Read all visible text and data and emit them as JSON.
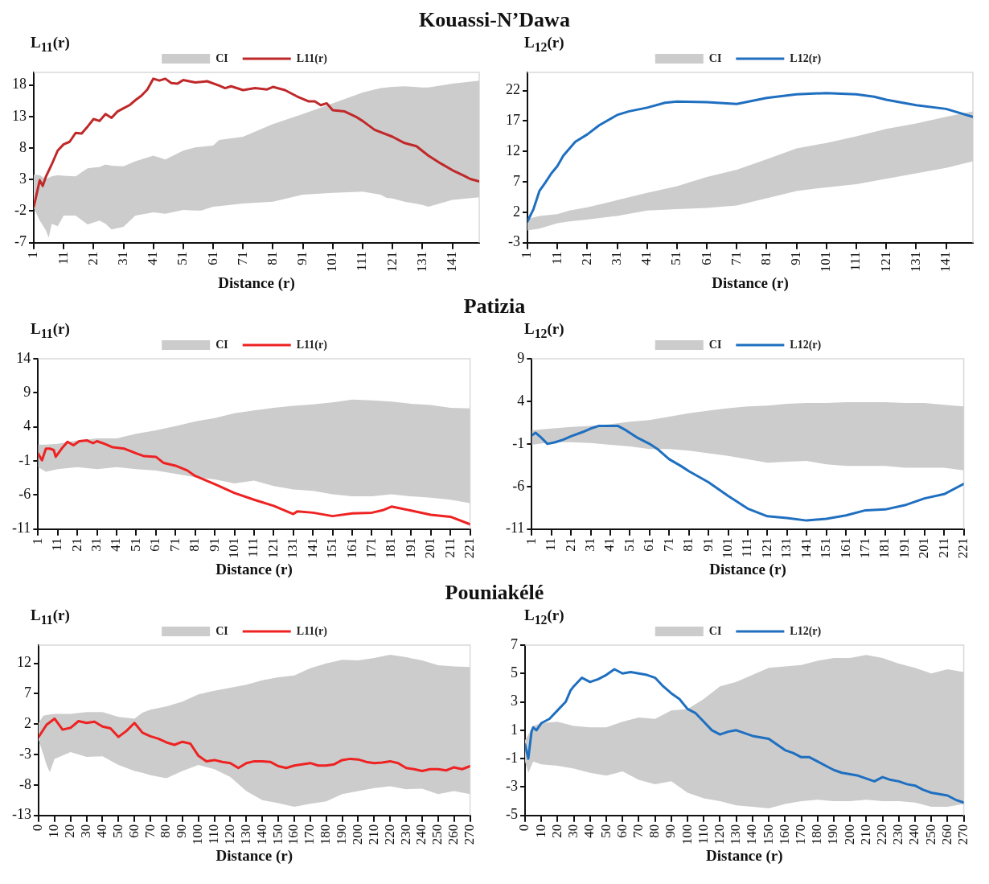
{
  "chart_data": [
    {
      "type": "line",
      "title": "Kouassi-N’Dawa",
      "xlabel": "Distance (r)",
      "ylabel": "L$_{11}$(r)",
      "xlim": [
        1,
        150
      ],
      "xticks": [
        1,
        11,
        21,
        31,
        41,
        51,
        61,
        71,
        81,
        91,
        101,
        111,
        121,
        131,
        141
      ],
      "ylim": [
        -7,
        20
      ],
      "yticks": [
        -7,
        -2,
        3,
        8,
        13,
        18
      ],
      "grid": false,
      "legend": "top",
      "series": [
        {
          "name": "CI",
          "type": "line",
          "color": "#cccccc",
          "values": [
            null,
            null,
            null,
            null,
            null,
            null,
            null,
            null,
            null,
            null,
            null,
            null,
            null,
            null,
            null,
            null,
            null,
            null,
            null,
            null,
            null,
            null,
            null,
            null,
            null,
            null,
            null,
            null,
            null,
            null,
            null,
            null,
            null,
            null
          ],
          "x": [
            1,
            3,
            5,
            6,
            7,
            9,
            11,
            15,
            19,
            23,
            25,
            27,
            31,
            35,
            41,
            45,
            51,
            55,
            57,
            61,
            63,
            71,
            81,
            91,
            101,
            111,
            117,
            119,
            121,
            125,
            131,
            133,
            141,
            150
          ],
          "upper": [
            3.8,
            3.7,
            3.1,
            3.3,
            3.5,
            3.7,
            3.6,
            3.5,
            4.8,
            5,
            5.4,
            5.2,
            5.1,
            5.9,
            6.8,
            6.2,
            7.6,
            8.1,
            8.2,
            8.4,
            9.3,
            9.8,
            11.8,
            13.4,
            15.1,
            16.8,
            17.5,
            17.6,
            17.7,
            17.8,
            17.6,
            17.6,
            18.2,
            18.7
          ],
          "lower": [
            -1.5,
            -3.5,
            -5,
            -6.2,
            -4,
            -4.4,
            -2.7,
            -2.7,
            -4.1,
            -3.5,
            -4,
            -4.9,
            -4.5,
            -2.7,
            -2.2,
            -2.4,
            -1.8,
            -1.9,
            -1.9,
            -1.3,
            -1.2,
            -0.8,
            -0.5,
            0.6,
            0.9,
            1.1,
            0.6,
            0.1,
            0,
            -0.5,
            -1,
            -1.3,
            -0.2,
            0.2
          ]
        },
        {
          "name": "L11(r)",
          "type": "line",
          "color": "#c0282a",
          "x": [
            1,
            3,
            4,
            5,
            7,
            9,
            11,
            13,
            15,
            17,
            19,
            21,
            23,
            25,
            27,
            29,
            31,
            33,
            35,
            37,
            39,
            41,
            43,
            45,
            47,
            49,
            51,
            55,
            59,
            63,
            65,
            67,
            71,
            75,
            79,
            81,
            85,
            89,
            93,
            95,
            97,
            99,
            101,
            105,
            109,
            111,
            115,
            121,
            125,
            129,
            133,
            137,
            141,
            145,
            147,
            150
          ],
          "values": [
            -1.3,
            2.9,
            2,
            3.4,
            5.4,
            7.6,
            8.6,
            9,
            10.4,
            10.3,
            11.4,
            12.6,
            12.3,
            13.4,
            12.8,
            13.8,
            14.3,
            14.8,
            15.6,
            16.3,
            17.3,
            19,
            18.7,
            19,
            18.3,
            18.2,
            18.8,
            18.4,
            18.6,
            17.9,
            17.5,
            17.8,
            17.2,
            17.5,
            17.3,
            17.7,
            17.2,
            16.2,
            15.4,
            15.4,
            14.8,
            15.1,
            14,
            13.8,
            12.9,
            12.3,
            10.9,
            9.8,
            8.8,
            8.3,
            6.8,
            5.6,
            4.5,
            3.6,
            3.1,
            2.7
          ]
        }
      ]
    },
    {
      "type": "line",
      "xlabel": "Distance (r)",
      "ylabel": "L$_{12}$(r)",
      "xlim": [
        1,
        150
      ],
      "xticks": [
        1,
        11,
        21,
        31,
        41,
        51,
        61,
        71,
        81,
        91,
        101,
        111,
        121,
        131,
        141
      ],
      "ylim": [
        -3,
        25
      ],
      "yticks": [
        -3,
        2,
        7,
        12,
        17,
        22
      ],
      "grid": false,
      "legend": "top",
      "series": [
        {
          "name": "CI",
          "type": "line",
          "color": "#cccccc",
          "values": [
            null,
            null,
            null,
            null,
            null,
            null,
            null,
            null,
            null,
            null,
            null,
            null,
            null,
            null,
            null,
            null,
            null,
            null
          ],
          "x": [
            1,
            5,
            11,
            15,
            21,
            31,
            41,
            51,
            61,
            71,
            81,
            91,
            101,
            111,
            121,
            131,
            141,
            150
          ],
          "upper": [
            0.9,
            1.4,
            1.7,
            2.3,
            2.8,
            4,
            5.2,
            6.3,
            7.8,
            9,
            10.7,
            12.5,
            13.4,
            14.5,
            15.7,
            16.6,
            17.7,
            18.6
          ],
          "lower": [
            -1,
            -0.7,
            0.2,
            0.5,
            0.8,
            1.4,
            2.3,
            2.5,
            2.7,
            3.1,
            4.3,
            5.5,
            6.1,
            6.6,
            7.5,
            8.4,
            9.3,
            10.4
          ]
        },
        {
          "name": "L12(r)",
          "type": "line",
          "color": "#1f6fc0",
          "x": [
            1,
            3,
            5,
            7,
            9,
            11,
            13,
            17,
            21,
            25,
            31,
            35,
            41,
            47,
            51,
            61,
            71,
            75,
            81,
            91,
            101,
            111,
            117,
            121,
            131,
            141,
            150
          ],
          "values": [
            0.5,
            2.5,
            5.5,
            6.9,
            8.4,
            9.6,
            11.3,
            13.6,
            14.8,
            16.3,
            18,
            18.6,
            19.2,
            20,
            20.2,
            20.1,
            19.8,
            20.2,
            20.8,
            21.4,
            21.6,
            21.4,
            21,
            20.5,
            19.6,
            19,
            17.7
          ]
        }
      ]
    },
    {
      "type": "line",
      "title": "Patizia",
      "xlabel": "Distance (r)",
      "ylabel": "L$_{11}$(r)",
      "xlim": [
        1,
        221
      ],
      "xticks": [
        1,
        11,
        21,
        31,
        41,
        51,
        61,
        71,
        81,
        91,
        101,
        111,
        121,
        131,
        141,
        151,
        161,
        171,
        181,
        191,
        201,
        211,
        221
      ],
      "ylim": [
        -11,
        14
      ],
      "yticks": [
        -11,
        -6,
        -1,
        4,
        9,
        14
      ],
      "grid": false,
      "legend": "top",
      "series": [
        {
          "name": "CI",
          "type": "line",
          "color": "#cccccc",
          "values": [
            null,
            null,
            null,
            null,
            null,
            null,
            null,
            null,
            null,
            null,
            null,
            null,
            null,
            null,
            null,
            null,
            null,
            null,
            null,
            null,
            null,
            null,
            null,
            null
          ],
          "x": [
            1,
            5,
            11,
            21,
            31,
            41,
            51,
            61,
            71,
            81,
            91,
            101,
            111,
            121,
            131,
            141,
            151,
            161,
            171,
            181,
            191,
            201,
            211,
            221
          ],
          "upper": [
            1.4,
            1.4,
            1.5,
            2,
            2.3,
            2.3,
            3,
            3.5,
            4.1,
            4.8,
            5.3,
            6,
            6.4,
            6.8,
            7.1,
            7.3,
            7.6,
            8,
            7.9,
            7.7,
            7.4,
            7.2,
            6.8,
            6.7
          ],
          "lower": [
            -1.9,
            -2.6,
            -2.2,
            -1.9,
            -2.2,
            -1.9,
            -2.2,
            -2.4,
            -2.9,
            -3.4,
            -3.7,
            -4.3,
            -3.9,
            -4.7,
            -5.2,
            -5.4,
            -5.9,
            -6.2,
            -6.2,
            -5.9,
            -6.2,
            -6.4,
            -6.7,
            -7.2
          ]
        },
        {
          "name": "L11(r)",
          "type": "line",
          "color": "#ee2222",
          "x": [
            1,
            3,
            5,
            7,
            9,
            10,
            13,
            16,
            19,
            22,
            26,
            29,
            31,
            35,
            39,
            45,
            51,
            55,
            61,
            65,
            71,
            77,
            81,
            91,
            101,
            111,
            121,
            131,
            133,
            141,
            151,
            161,
            171,
            177,
            181,
            191,
            201,
            211,
            221
          ],
          "values": [
            0.1,
            -0.9,
            0.8,
            0.8,
            0.6,
            -0.4,
            0.8,
            1.8,
            1.3,
            1.9,
            2,
            1.6,
            1.9,
            1.5,
            1,
            0.8,
            0.1,
            -0.3,
            -0.4,
            -1.3,
            -1.7,
            -2.4,
            -3.2,
            -4.4,
            -5.7,
            -6.7,
            -7.6,
            -8.8,
            -8.4,
            -8.6,
            -9.1,
            -8.7,
            -8.6,
            -8.2,
            -7.7,
            -8.3,
            -8.9,
            -9.2,
            -10.3
          ]
        }
      ]
    },
    {
      "type": "line",
      "xlabel": "Distance (r)",
      "ylabel": "L$_{12}$(r)",
      "xlim": [
        1,
        221
      ],
      "xticks": [
        1,
        11,
        21,
        31,
        41,
        51,
        61,
        71,
        81,
        91,
        101,
        111,
        121,
        131,
        141,
        151,
        161,
        171,
        181,
        191,
        201,
        211,
        221
      ],
      "ylim": [
        -11,
        9
      ],
      "yticks": [
        -11,
        -6,
        -1,
        4,
        9
      ],
      "grid": false,
      "legend": "top",
      "series": [
        {
          "name": "CI",
          "type": "line",
          "color": "#cccccc",
          "values": [
            null,
            null,
            null,
            null,
            null,
            null,
            null,
            null,
            null,
            null,
            null,
            null,
            null,
            null,
            null,
            null,
            null,
            null,
            null,
            null,
            null,
            null,
            null
          ],
          "x": [
            1,
            11,
            21,
            31,
            41,
            51,
            61,
            71,
            81,
            91,
            101,
            111,
            121,
            131,
            141,
            151,
            161,
            171,
            181,
            191,
            201,
            211,
            221
          ],
          "upper": [
            0.6,
            0.8,
            1,
            1.1,
            1.3,
            1.6,
            1.8,
            2.2,
            2.6,
            2.9,
            3.2,
            3.4,
            3.5,
            3.7,
            3.8,
            3.8,
            3.9,
            3.9,
            3.9,
            3.8,
            3.8,
            3.6,
            3.4
          ],
          "lower": [
            -1.1,
            -0.8,
            -0.8,
            -0.9,
            -1.1,
            -1.3,
            -1.6,
            -1.6,
            -1.8,
            -2.1,
            -2.4,
            -2.8,
            -3.2,
            -3.1,
            -3,
            -3.4,
            -3.6,
            -3.6,
            -3.6,
            -3.8,
            -3.8,
            -3.8,
            -4.1
          ]
        },
        {
          "name": "L12(r)",
          "type": "line",
          "color": "#1f6fc0",
          "x": [
            1,
            3,
            6,
            9,
            13,
            17,
            21,
            27,
            31,
            35,
            41,
            45,
            49,
            55,
            61,
            65,
            71,
            77,
            81,
            91,
            101,
            111,
            121,
            131,
            141,
            151,
            161,
            171,
            181,
            191,
            201,
            211,
            221
          ],
          "values": [
            0,
            0.3,
            -0.3,
            -1,
            -0.8,
            -0.5,
            -0.1,
            0.4,
            0.8,
            1.1,
            1.1,
            1.1,
            0.6,
            -0.3,
            -1,
            -1.6,
            -2.8,
            -3.6,
            -4.2,
            -5.5,
            -7.1,
            -8.6,
            -9.5,
            -9.7,
            -10,
            -9.8,
            -9.4,
            -8.8,
            -8.7,
            -8.2,
            -7.4,
            -6.9,
            -5.7
          ]
        }
      ]
    },
    {
      "type": "line",
      "title": "Pouniakélé",
      "xlabel": "Distance (r)",
      "ylabel": "L$_{11}$(r)",
      "xlim": [
        0,
        270
      ],
      "xticks": [
        0,
        10,
        20,
        30,
        40,
        50,
        60,
        70,
        80,
        90,
        100,
        110,
        120,
        130,
        140,
        150,
        160,
        170,
        180,
        190,
        200,
        210,
        220,
        230,
        240,
        250,
        260,
        270
      ],
      "ylim": [
        -13,
        15
      ],
      "yticks": [
        -13,
        -8,
        -3,
        2,
        7,
        12
      ],
      "grid": false,
      "legend": "top",
      "series": [
        {
          "name": "CI",
          "type": "line",
          "color": "#cccccc",
          "values": [
            null,
            null,
            null,
            null,
            null,
            null,
            null,
            null,
            null,
            null,
            null,
            null,
            null,
            null,
            null,
            null,
            null,
            null,
            null,
            null,
            null,
            null,
            null,
            null,
            null,
            null,
            null,
            null,
            null,
            null,
            null,
            null
          ],
          "x": [
            0,
            3,
            5,
            7,
            10,
            20,
            30,
            40,
            50,
            60,
            65,
            70,
            80,
            90,
            100,
            110,
            120,
            130,
            140,
            150,
            160,
            170,
            180,
            190,
            200,
            210,
            220,
            230,
            240,
            250,
            260,
            270
          ],
          "upper": [
            2.2,
            3.4,
            3.5,
            3.6,
            3.7,
            3.7,
            4,
            4,
            3.2,
            2.9,
            3.9,
            4.4,
            4.9,
            5.7,
            6.9,
            7.5,
            8,
            8.5,
            9.2,
            9.7,
            10,
            11.2,
            12,
            12.6,
            12.5,
            12.9,
            13.4,
            13,
            12.5,
            11.7,
            11.5,
            11.4
          ],
          "lower": [
            -0.6,
            -3,
            -4.7,
            -5.9,
            -3.7,
            -2.6,
            -3.4,
            -3.3,
            -4.7,
            -5.7,
            -6,
            -6.4,
            -6.9,
            -5.7,
            -4.7,
            -5.4,
            -6.7,
            -9,
            -10.5,
            -11,
            -11.6,
            -11.1,
            -10.7,
            -9.5,
            -9,
            -8.5,
            -8.2,
            -8.7,
            -8.6,
            -9.5,
            -9,
            -9.5
          ]
        },
        {
          "name": "L11(r)",
          "type": "line",
          "color": "#ee2222",
          "x": [
            0,
            5,
            10,
            15,
            20,
            25,
            30,
            35,
            40,
            45,
            50,
            55,
            60,
            65,
            70,
            75,
            80,
            85,
            90,
            95,
            100,
            105,
            110,
            115,
            120,
            125,
            130,
            135,
            140,
            145,
            150,
            155,
            160,
            165,
            170,
            175,
            180,
            185,
            190,
            195,
            200,
            205,
            210,
            215,
            220,
            225,
            230,
            235,
            240,
            245,
            250,
            255,
            260,
            265,
            270
          ],
          "values": [
            -0.1,
            1.9,
            2.9,
            1.1,
            1.4,
            2.5,
            2.2,
            2.4,
            1.6,
            1.3,
            -0.1,
            0.9,
            2.2,
            0.6,
            0,
            -0.4,
            -1,
            -1.4,
            -0.9,
            -1.2,
            -3.2,
            -4.1,
            -3.9,
            -4.2,
            -4.4,
            -5.2,
            -4.4,
            -4.1,
            -4.1,
            -4.2,
            -4.9,
            -5.2,
            -4.8,
            -4.6,
            -4.4,
            -4.8,
            -4.8,
            -4.6,
            -3.9,
            -3.7,
            -3.8,
            -4.2,
            -4.4,
            -4.3,
            -4.1,
            -4.4,
            -5.2,
            -5.4,
            -5.7,
            -5.4,
            -5.4,
            -5.6,
            -5.1,
            -5.4,
            -4.9
          ]
        }
      ]
    },
    {
      "type": "line",
      "xlabel": "Distance (r)",
      "ylabel": "L$_{12}$(r)",
      "xlim": [
        0,
        270
      ],
      "xticks": [
        0,
        10,
        20,
        30,
        40,
        50,
        60,
        70,
        80,
        90,
        100,
        110,
        120,
        130,
        140,
        150,
        160,
        170,
        180,
        190,
        200,
        210,
        220,
        230,
        240,
        250,
        260,
        270
      ],
      "ylim": [
        -5,
        7
      ],
      "yticks": [
        -5,
        -3,
        -1,
        1,
        3,
        5,
        7
      ],
      "grid": false,
      "legend": "top",
      "series": [
        {
          "name": "CI",
          "type": "line",
          "color": "#cccccc",
          "values": [
            null,
            null,
            null,
            null,
            null,
            null,
            null,
            null,
            null,
            null,
            null,
            null,
            null,
            null,
            null,
            null,
            null,
            null,
            null,
            null,
            null,
            null,
            null,
            null,
            null,
            null,
            null,
            null,
            null,
            null
          ],
          "x": [
            0,
            2,
            5,
            10,
            20,
            30,
            40,
            50,
            60,
            70,
            80,
            90,
            100,
            110,
            120,
            130,
            140,
            150,
            160,
            170,
            180,
            190,
            200,
            210,
            220,
            230,
            240,
            250,
            260,
            270
          ],
          "upper": [
            0.3,
            0.7,
            1.3,
            1.5,
            1.6,
            1.3,
            1.2,
            1.2,
            1.6,
            1.9,
            1.8,
            2.4,
            2.5,
            3.2,
            4.1,
            4.4,
            4.9,
            5.4,
            5.5,
            5.6,
            5.9,
            6.1,
            6.1,
            6.3,
            6.1,
            5.7,
            5.4,
            5,
            5.3,
            5.1
          ],
          "lower": [
            -1.2,
            -2,
            -1.2,
            -1.4,
            -1.5,
            -1.7,
            -2,
            -2.2,
            -1.9,
            -2.5,
            -2.8,
            -2.6,
            -3.4,
            -3.8,
            -4,
            -4.3,
            -4.4,
            -4.5,
            -4.2,
            -4,
            -3.9,
            -4,
            -4,
            -3.9,
            -4,
            -4,
            -4.1,
            -4.4,
            -4.4,
            -4.2
          ]
        },
        {
          "name": "L12(r)",
          "type": "line",
          "color": "#1f6fc0",
          "x": [
            0,
            2,
            4,
            5,
            7,
            10,
            15,
            20,
            25,
            28,
            30,
            35,
            40,
            45,
            50,
            55,
            60,
            65,
            70,
            75,
            80,
            85,
            90,
            95,
            100,
            105,
            110,
            115,
            120,
            125,
            130,
            135,
            140,
            145,
            150,
            155,
            160,
            165,
            170,
            175,
            180,
            185,
            190,
            195,
            200,
            205,
            210,
            215,
            220,
            225,
            230,
            235,
            240,
            245,
            250,
            255,
            260,
            265,
            270
          ],
          "values": [
            0,
            -1,
            0.9,
            1.2,
            1,
            1.5,
            1.8,
            2.4,
            3,
            3.8,
            4.1,
            4.7,
            4.4,
            4.6,
            4.9,
            5.3,
            5,
            5.1,
            5,
            4.9,
            4.7,
            4.1,
            3.6,
            3.2,
            2.5,
            2.2,
            1.6,
            1,
            0.7,
            0.9,
            1,
            0.8,
            0.6,
            0.5,
            0.4,
            0,
            -0.4,
            -0.6,
            -0.9,
            -0.9,
            -1.2,
            -1.5,
            -1.8,
            -2,
            -2.1,
            -2.2,
            -2.4,
            -2.6,
            -2.3,
            -2.5,
            -2.6,
            -2.8,
            -2.9,
            -3.2,
            -3.4,
            -3.5,
            -3.6,
            -3.9,
            -4.1
          ]
        }
      ]
    }
  ]
}
